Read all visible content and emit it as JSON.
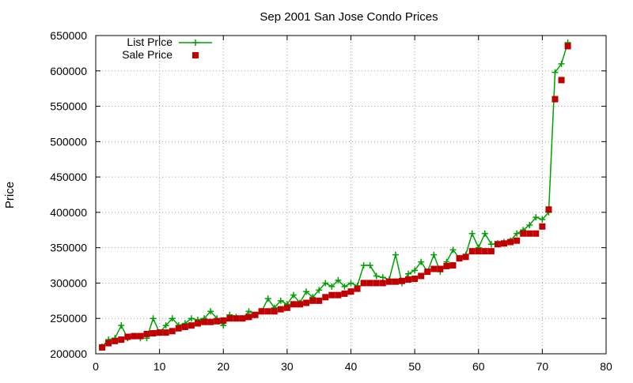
{
  "chart_data": {
    "type": "line",
    "title": "Sep 2001 San Jose Condo Prices",
    "xlabel": "",
    "ylabel": "Price",
    "xlim": [
      0,
      80
    ],
    "ylim": [
      200000,
      650000
    ],
    "x_ticks": [
      0,
      10,
      20,
      30,
      40,
      50,
      60,
      70,
      80
    ],
    "y_ticks": [
      200000,
      250000,
      300000,
      350000,
      400000,
      450000,
      500000,
      550000,
      600000,
      650000
    ],
    "grid": true,
    "legend_position": "top-left",
    "series": [
      {
        "name": "List Price",
        "style": "line-with-plus-markers",
        "color": "#00a000",
        "x": [
          1,
          2,
          3,
          4,
          5,
          6,
          7,
          8,
          9,
          10,
          11,
          12,
          13,
          14,
          15,
          16,
          17,
          18,
          19,
          20,
          21,
          22,
          23,
          24,
          25,
          26,
          27,
          28,
          29,
          30,
          31,
          32,
          33,
          34,
          35,
          36,
          37,
          38,
          39,
          40,
          41,
          42,
          43,
          44,
          45,
          46,
          47,
          48,
          49,
          50,
          51,
          52,
          53,
          54,
          55,
          56,
          57,
          58,
          59,
          60,
          61,
          62,
          63,
          64,
          65,
          66,
          67,
          68,
          69,
          70,
          71,
          72,
          73,
          74
        ],
        "values": [
          210000,
          220000,
          222000,
          240000,
          222000,
          225000,
          222000,
          222000,
          250000,
          230000,
          240000,
          250000,
          240000,
          243000,
          250000,
          248000,
          250000,
          260000,
          250000,
          240000,
          255000,
          252000,
          250000,
          260000,
          255000,
          260000,
          278000,
          265000,
          275000,
          270000,
          283000,
          272000,
          288000,
          280000,
          290000,
          300000,
          295000,
          304000,
          295000,
          300000,
          296000,
          325000,
          325000,
          310000,
          308000,
          305000,
          340000,
          300000,
          313000,
          318000,
          330000,
          316000,
          340000,
          316000,
          330000,
          347000,
          335000,
          340000,
          370000,
          350000,
          370000,
          355000,
          356000,
          358000,
          360000,
          370000,
          375000,
          382000,
          393000,
          390000,
          400000,
          598000,
          610000,
          640000
        ]
      },
      {
        "name": "Sale Price",
        "style": "square-markers",
        "color": "#c00000",
        "x": [
          1,
          2,
          3,
          4,
          5,
          6,
          7,
          8,
          9,
          10,
          11,
          12,
          13,
          14,
          15,
          16,
          17,
          18,
          19,
          20,
          21,
          22,
          23,
          24,
          25,
          26,
          27,
          28,
          29,
          30,
          31,
          32,
          33,
          34,
          35,
          36,
          37,
          38,
          39,
          40,
          41,
          42,
          43,
          44,
          45,
          46,
          47,
          48,
          49,
          50,
          51,
          52,
          53,
          54,
          55,
          56,
          57,
          58,
          59,
          60,
          61,
          62,
          63,
          64,
          65,
          66,
          67,
          68,
          69,
          70,
          71,
          72,
          73,
          74
        ],
        "values": [
          209000,
          215000,
          218000,
          220000,
          224000,
          225000,
          225000,
          228000,
          229000,
          230000,
          230000,
          232000,
          236000,
          238000,
          240000,
          243000,
          245000,
          245000,
          246000,
          247000,
          250000,
          250000,
          250000,
          252000,
          255000,
          260000,
          260000,
          260000,
          263000,
          265000,
          270000,
          270000,
          272000,
          275000,
          275000,
          280000,
          283000,
          283000,
          285000,
          288000,
          292000,
          300000,
          300000,
          300000,
          300000,
          302000,
          302000,
          303000,
          305000,
          306000,
          310000,
          316000,
          320000,
          320000,
          324000,
          325000,
          335000,
          337000,
          345000,
          345000,
          345000,
          345000,
          355000,
          356000,
          358000,
          360000,
          370000,
          370000,
          370000,
          380000,
          404000,
          560000,
          587000,
          635000
        ]
      }
    ]
  }
}
